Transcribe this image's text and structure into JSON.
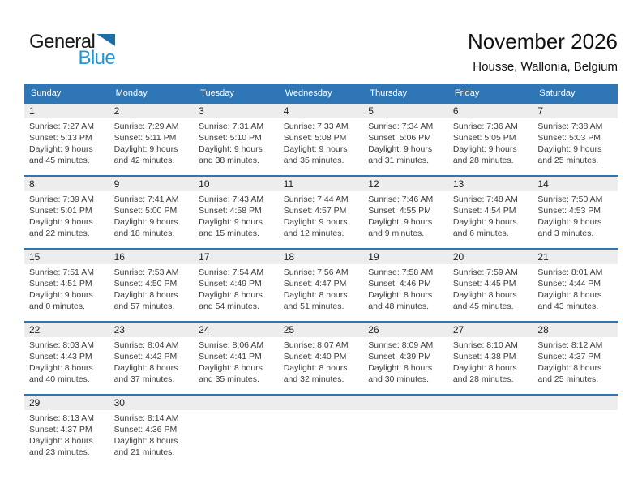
{
  "logo": {
    "general": "General",
    "blue": "Blue"
  },
  "header": {
    "title": "November 2026",
    "subtitle": "Housse, Wallonia, Belgium"
  },
  "colors": {
    "header_blue": "#2e76b5",
    "row_divider_blue": "#2e76b5",
    "number_band_gray": "#ededed",
    "logo_blue": "#2196d8",
    "logo_triangle_blue": "#1e6fa8"
  },
  "calendar": {
    "day_headers": [
      "Sunday",
      "Monday",
      "Tuesday",
      "Wednesday",
      "Thursday",
      "Friday",
      "Saturday"
    ],
    "weeks": [
      [
        {
          "day": "1",
          "lines": [
            "Sunrise: 7:27 AM",
            "Sunset: 5:13 PM",
            "Daylight: 9 hours",
            "and 45 minutes."
          ]
        },
        {
          "day": "2",
          "lines": [
            "Sunrise: 7:29 AM",
            "Sunset: 5:11 PM",
            "Daylight: 9 hours",
            "and 42 minutes."
          ]
        },
        {
          "day": "3",
          "lines": [
            "Sunrise: 7:31 AM",
            "Sunset: 5:10 PM",
            "Daylight: 9 hours",
            "and 38 minutes."
          ]
        },
        {
          "day": "4",
          "lines": [
            "Sunrise: 7:33 AM",
            "Sunset: 5:08 PM",
            "Daylight: 9 hours",
            "and 35 minutes."
          ]
        },
        {
          "day": "5",
          "lines": [
            "Sunrise: 7:34 AM",
            "Sunset: 5:06 PM",
            "Daylight: 9 hours",
            "and 31 minutes."
          ]
        },
        {
          "day": "6",
          "lines": [
            "Sunrise: 7:36 AM",
            "Sunset: 5:05 PM",
            "Daylight: 9 hours",
            "and 28 minutes."
          ]
        },
        {
          "day": "7",
          "lines": [
            "Sunrise: 7:38 AM",
            "Sunset: 5:03 PM",
            "Daylight: 9 hours",
            "and 25 minutes."
          ]
        }
      ],
      [
        {
          "day": "8",
          "lines": [
            "Sunrise: 7:39 AM",
            "Sunset: 5:01 PM",
            "Daylight: 9 hours",
            "and 22 minutes."
          ]
        },
        {
          "day": "9",
          "lines": [
            "Sunrise: 7:41 AM",
            "Sunset: 5:00 PM",
            "Daylight: 9 hours",
            "and 18 minutes."
          ]
        },
        {
          "day": "10",
          "lines": [
            "Sunrise: 7:43 AM",
            "Sunset: 4:58 PM",
            "Daylight: 9 hours",
            "and 15 minutes."
          ]
        },
        {
          "day": "11",
          "lines": [
            "Sunrise: 7:44 AM",
            "Sunset: 4:57 PM",
            "Daylight: 9 hours",
            "and 12 minutes."
          ]
        },
        {
          "day": "12",
          "lines": [
            "Sunrise: 7:46 AM",
            "Sunset: 4:55 PM",
            "Daylight: 9 hours",
            "and 9 minutes."
          ]
        },
        {
          "day": "13",
          "lines": [
            "Sunrise: 7:48 AM",
            "Sunset: 4:54 PM",
            "Daylight: 9 hours",
            "and 6 minutes."
          ]
        },
        {
          "day": "14",
          "lines": [
            "Sunrise: 7:50 AM",
            "Sunset: 4:53 PM",
            "Daylight: 9 hours",
            "and 3 minutes."
          ]
        }
      ],
      [
        {
          "day": "15",
          "lines": [
            "Sunrise: 7:51 AM",
            "Sunset: 4:51 PM",
            "Daylight: 9 hours",
            "and 0 minutes."
          ]
        },
        {
          "day": "16",
          "lines": [
            "Sunrise: 7:53 AM",
            "Sunset: 4:50 PM",
            "Daylight: 8 hours",
            "and 57 minutes."
          ]
        },
        {
          "day": "17",
          "lines": [
            "Sunrise: 7:54 AM",
            "Sunset: 4:49 PM",
            "Daylight: 8 hours",
            "and 54 minutes."
          ]
        },
        {
          "day": "18",
          "lines": [
            "Sunrise: 7:56 AM",
            "Sunset: 4:47 PM",
            "Daylight: 8 hours",
            "and 51 minutes."
          ]
        },
        {
          "day": "19",
          "lines": [
            "Sunrise: 7:58 AM",
            "Sunset: 4:46 PM",
            "Daylight: 8 hours",
            "and 48 minutes."
          ]
        },
        {
          "day": "20",
          "lines": [
            "Sunrise: 7:59 AM",
            "Sunset: 4:45 PM",
            "Daylight: 8 hours",
            "and 45 minutes."
          ]
        },
        {
          "day": "21",
          "lines": [
            "Sunrise: 8:01 AM",
            "Sunset: 4:44 PM",
            "Daylight: 8 hours",
            "and 43 minutes."
          ]
        }
      ],
      [
        {
          "day": "22",
          "lines": [
            "Sunrise: 8:03 AM",
            "Sunset: 4:43 PM",
            "Daylight: 8 hours",
            "and 40 minutes."
          ]
        },
        {
          "day": "23",
          "lines": [
            "Sunrise: 8:04 AM",
            "Sunset: 4:42 PM",
            "Daylight: 8 hours",
            "and 37 minutes."
          ]
        },
        {
          "day": "24",
          "lines": [
            "Sunrise: 8:06 AM",
            "Sunset: 4:41 PM",
            "Daylight: 8 hours",
            "and 35 minutes."
          ]
        },
        {
          "day": "25",
          "lines": [
            "Sunrise: 8:07 AM",
            "Sunset: 4:40 PM",
            "Daylight: 8 hours",
            "and 32 minutes."
          ]
        },
        {
          "day": "26",
          "lines": [
            "Sunrise: 8:09 AM",
            "Sunset: 4:39 PM",
            "Daylight: 8 hours",
            "and 30 minutes."
          ]
        },
        {
          "day": "27",
          "lines": [
            "Sunrise: 8:10 AM",
            "Sunset: 4:38 PM",
            "Daylight: 8 hours",
            "and 28 minutes."
          ]
        },
        {
          "day": "28",
          "lines": [
            "Sunrise: 8:12 AM",
            "Sunset: 4:37 PM",
            "Daylight: 8 hours",
            "and 25 minutes."
          ]
        }
      ],
      [
        {
          "day": "29",
          "lines": [
            "Sunrise: 8:13 AM",
            "Sunset: 4:37 PM",
            "Daylight: 8 hours",
            "and 23 minutes."
          ]
        },
        {
          "day": "30",
          "lines": [
            "Sunrise: 8:14 AM",
            "Sunset: 4:36 PM",
            "Daylight: 8 hours",
            "and 21 minutes."
          ]
        },
        {
          "day": "",
          "lines": []
        },
        {
          "day": "",
          "lines": []
        },
        {
          "day": "",
          "lines": []
        },
        {
          "day": "",
          "lines": []
        },
        {
          "day": "",
          "lines": []
        }
      ]
    ]
  }
}
